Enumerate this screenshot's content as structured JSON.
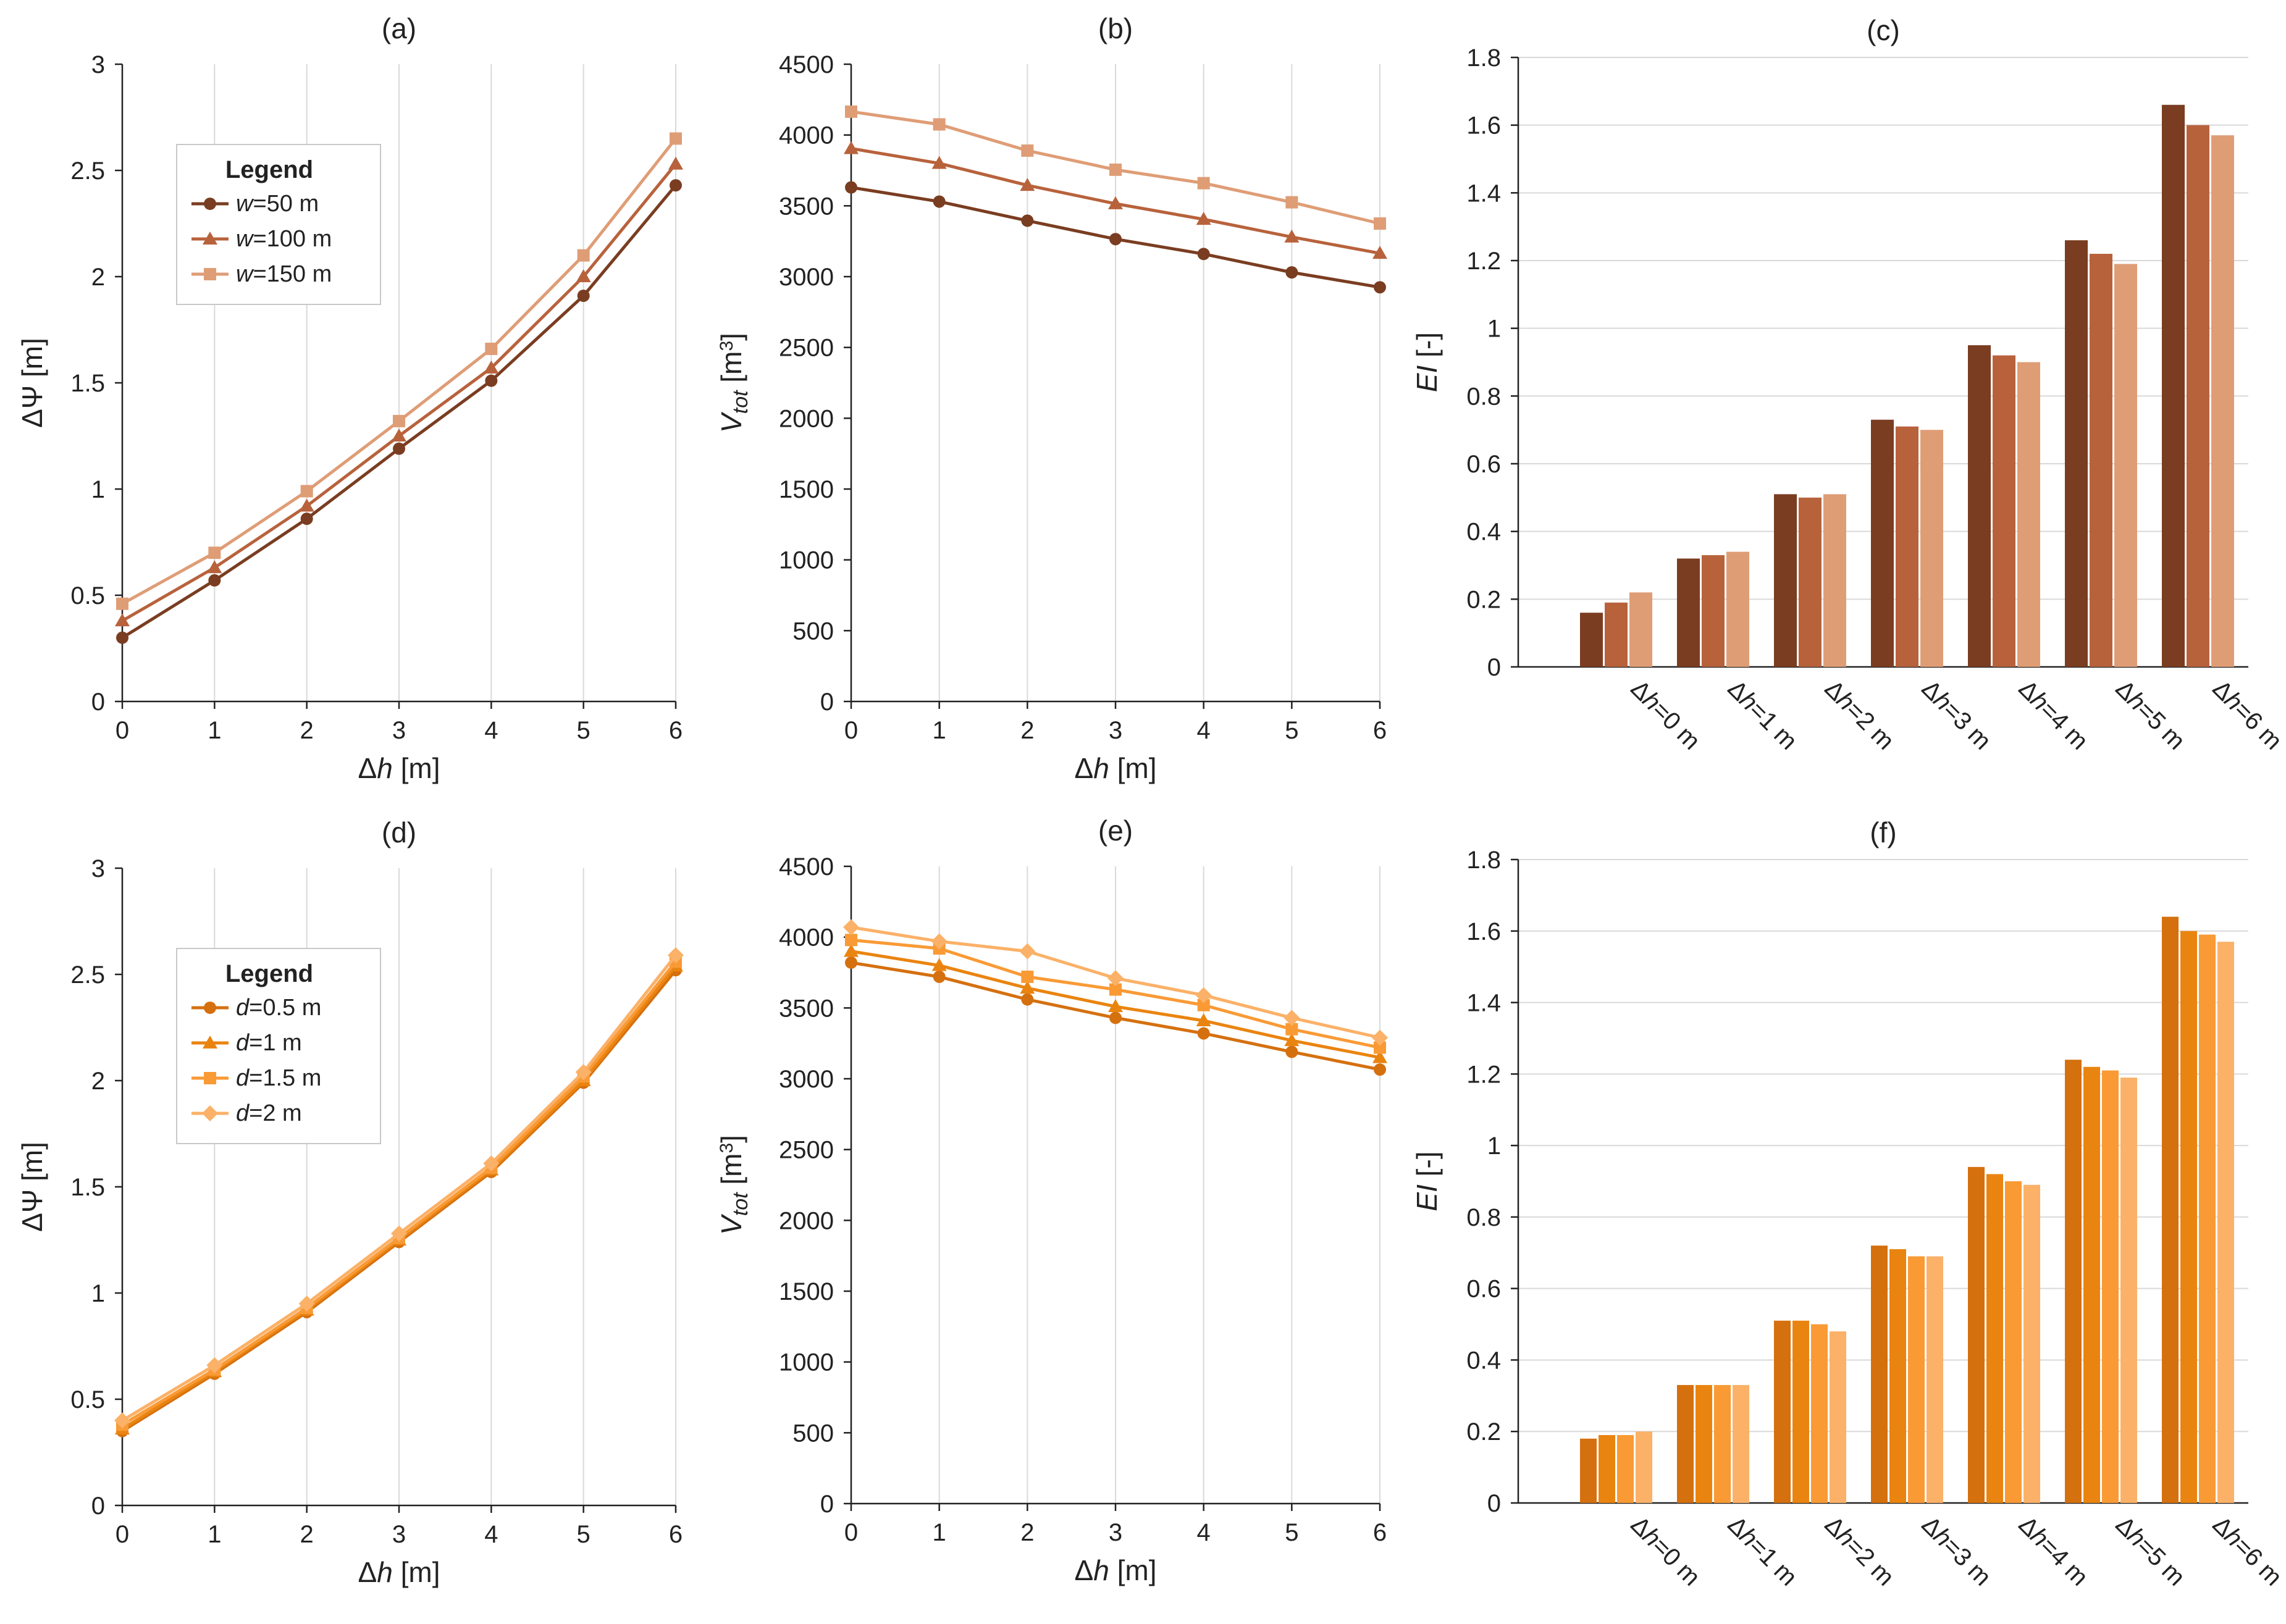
{
  "colors": {
    "brown": [
      "#7a3d21",
      "#b8623c",
      "#df9d76"
    ],
    "orange": [
      "#d5700f",
      "#ea8410",
      "#f99a35",
      "#fbb168"
    ]
  },
  "chart_data": [
    {
      "id": "a",
      "type": "line",
      "title": "(a)",
      "xlabel": "Δh [m]",
      "ylabel": "ΔΨ [m]",
      "x": [
        0,
        1,
        2,
        3,
        4,
        5,
        6
      ],
      "xlim": [
        0,
        6
      ],
      "ylim": [
        0,
        3
      ],
      "yticks": [
        "0",
        "0.5",
        "1",
        "1.5",
        "2",
        "2.5",
        "3"
      ],
      "legend": {
        "title": "Legend",
        "position": "upper-left"
      },
      "palette": "brown",
      "series": [
        {
          "name": "w=50 m",
          "var": "w",
          "rest": "=50 m",
          "marker": "circle",
          "values": [
            0.3,
            0.57,
            0.86,
            1.19,
            1.51,
            1.91,
            2.43
          ]
        },
        {
          "name": "w=100 m",
          "var": "w",
          "rest": "=100 m",
          "marker": "triangle",
          "values": [
            0.38,
            0.63,
            0.92,
            1.25,
            1.57,
            2.0,
            2.53
          ]
        },
        {
          "name": "w=150 m",
          "var": "w",
          "rest": "=150 m",
          "marker": "square",
          "values": [
            0.46,
            0.7,
            0.99,
            1.32,
            1.66,
            2.1,
            2.65
          ]
        }
      ]
    },
    {
      "id": "b",
      "type": "line",
      "title": "(b)",
      "xlabel": "Δh [m]",
      "ylabel": "Vtot [m3]",
      "x": [
        0,
        1,
        2,
        3,
        4,
        5,
        6
      ],
      "xlim": [
        0,
        6
      ],
      "ylim": [
        0,
        4500
      ],
      "yticks": [
        "0",
        "500",
        "1000",
        "1500",
        "2000",
        "2500",
        "3000",
        "3500",
        "4000",
        "4500"
      ],
      "palette": "brown",
      "series": [
        {
          "marker": "circle",
          "values": [
            3630,
            3530,
            3395,
            3265,
            3160,
            3030,
            2925
          ]
        },
        {
          "marker": "triangle",
          "values": [
            3905,
            3800,
            3645,
            3515,
            3405,
            3280,
            3165
          ]
        },
        {
          "marker": "square",
          "values": [
            4165,
            4075,
            3890,
            3755,
            3660,
            3525,
            3375
          ]
        }
      ]
    },
    {
      "id": "c",
      "type": "bar",
      "title": "(c)",
      "ylabel": "EI [-]",
      "categories": [
        "Δh=0 m",
        "Δh=1 m",
        "Δh=2 m",
        "Δh=3 m",
        "Δh=4 m",
        "Δh=5 m",
        "Δh=6 m"
      ],
      "ylim": [
        0,
        1.8
      ],
      "yticks": [
        "0",
        "0.2",
        "0.4",
        "0.6",
        "0.8",
        "1",
        "1.2",
        "1.4",
        "1.6",
        "1.8"
      ],
      "palette": "brown",
      "series": [
        {
          "values": [
            0.16,
            0.32,
            0.51,
            0.73,
            0.95,
            1.26,
            1.66
          ]
        },
        {
          "values": [
            0.19,
            0.33,
            0.5,
            0.71,
            0.92,
            1.22,
            1.6
          ]
        },
        {
          "values": [
            0.22,
            0.34,
            0.51,
            0.7,
            0.9,
            1.19,
            1.57
          ]
        }
      ]
    },
    {
      "id": "d",
      "type": "line",
      "title": "(d)",
      "xlabel": "Δh [m]",
      "ylabel": "ΔΨ [m]",
      "x": [
        0,
        1,
        2,
        3,
        4,
        5,
        6
      ],
      "xlim": [
        0,
        6
      ],
      "ylim": [
        0,
        3
      ],
      "yticks": [
        "0",
        "0.5",
        "1",
        "1.5",
        "2",
        "2.5",
        "3"
      ],
      "legend": {
        "title": "Legend",
        "position": "upper-left"
      },
      "palette": "orange",
      "series": [
        {
          "name": "d=0.5 m",
          "var": "d",
          "rest": "=0.5 m",
          "marker": "circle",
          "values": [
            0.35,
            0.62,
            0.91,
            1.24,
            1.57,
            1.99,
            2.52
          ]
        },
        {
          "name": "d=1 m",
          "var": "d",
          "rest": "=1 m",
          "marker": "triangle",
          "values": [
            0.36,
            0.63,
            0.92,
            1.25,
            1.58,
            2.0,
            2.54
          ]
        },
        {
          "name": "d=1.5 m",
          "var": "d",
          "rest": "=1.5 m",
          "marker": "square",
          "values": [
            0.38,
            0.64,
            0.93,
            1.26,
            1.59,
            2.02,
            2.56
          ]
        },
        {
          "name": "d=2 m",
          "var": "d",
          "rest": "=2 m",
          "marker": "diamond",
          "values": [
            0.4,
            0.66,
            0.95,
            1.28,
            1.61,
            2.04,
            2.59
          ]
        }
      ]
    },
    {
      "id": "e",
      "type": "line",
      "title": "(e)",
      "xlabel": "Δh [m]",
      "ylabel": "Vtot [m3]",
      "x": [
        0,
        1,
        2,
        3,
        4,
        5,
        6
      ],
      "xlim": [
        0,
        6
      ],
      "ylim": [
        0,
        4500
      ],
      "yticks": [
        "0",
        "500",
        "1000",
        "1500",
        "2000",
        "2500",
        "3000",
        "3500",
        "4000",
        "4500"
      ],
      "palette": "orange",
      "series": [
        {
          "marker": "circle",
          "values": [
            3820,
            3720,
            3560,
            3430,
            3320,
            3190,
            3065
          ]
        },
        {
          "marker": "triangle",
          "values": [
            3900,
            3800,
            3640,
            3510,
            3410,
            3270,
            3150
          ]
        },
        {
          "marker": "square",
          "values": [
            3980,
            3920,
            3720,
            3630,
            3520,
            3350,
            3220
          ]
        },
        {
          "marker": "diamond",
          "values": [
            4070,
            3970,
            3900,
            3710,
            3590,
            3430,
            3290
          ]
        }
      ]
    },
    {
      "id": "f",
      "type": "bar",
      "title": "(f)",
      "ylabel": "EI [-]",
      "categories": [
        "Δh=0 m",
        "Δh=1 m",
        "Δh=2 m",
        "Δh=3 m",
        "Δh=4 m",
        "Δh=5 m",
        "Δh=6 m"
      ],
      "ylim": [
        0,
        1.8
      ],
      "yticks": [
        "0",
        "0.2",
        "0.4",
        "0.6",
        "0.8",
        "1",
        "1.2",
        "1.4",
        "1.6",
        "1.8"
      ],
      "palette": "orange",
      "series": [
        {
          "values": [
            0.18,
            0.33,
            0.51,
            0.72,
            0.94,
            1.24,
            1.64
          ]
        },
        {
          "values": [
            0.19,
            0.33,
            0.51,
            0.71,
            0.92,
            1.22,
            1.6
          ]
        },
        {
          "values": [
            0.19,
            0.33,
            0.5,
            0.69,
            0.9,
            1.21,
            1.59
          ]
        },
        {
          "values": [
            0.2,
            0.33,
            0.48,
            0.69,
            0.89,
            1.19,
            1.57
          ]
        }
      ]
    }
  ]
}
